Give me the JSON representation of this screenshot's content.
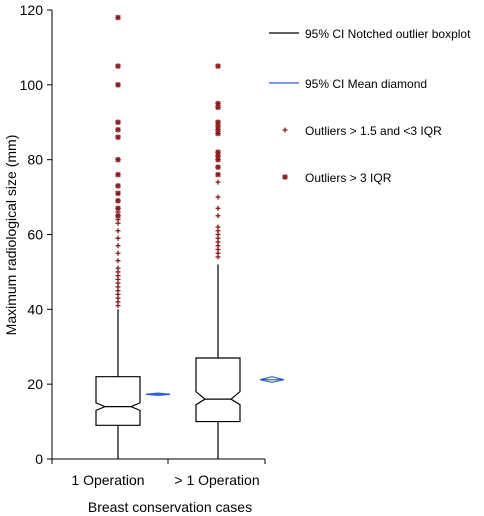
{
  "chart_data": {
    "type": "boxplot",
    "xlabel": "Breast conservation cases",
    "ylabel": "Maximum radiological size (mm)",
    "ylim": [
      0,
      120
    ],
    "yticks": [
      0,
      20,
      40,
      60,
      80,
      100,
      120
    ],
    "categories": [
      "1 Operation",
      "> 1 Operation"
    ],
    "boxes": [
      {
        "category": "1 Operation",
        "whisker_low": 0,
        "q1": 9,
        "median": 14,
        "q3": 22,
        "whisker_high": 40,
        "notch_low": 13,
        "notch_high": 15,
        "mean_ci_low": 17,
        "mean": 17.3,
        "mean_ci_high": 17.6,
        "outliers_mild": [
          41,
          42,
          43,
          44,
          45,
          46,
          47,
          48,
          49,
          50,
          51,
          53,
          55,
          57,
          59,
          61,
          63,
          64,
          66
        ],
        "outliers_extreme": [
          65,
          67,
          69,
          71,
          73,
          76,
          80,
          86,
          88,
          90,
          100,
          105,
          118
        ]
      },
      {
        "category": "> 1 Operation",
        "whisker_low": 0,
        "q1": 10,
        "median": 16,
        "q3": 27,
        "whisker_high": 52,
        "notch_low": 14.5,
        "notch_high": 18,
        "mean_ci_low": 20.5,
        "mean": 21.2,
        "mean_ci_high": 22,
        "outliers_mild": [
          54,
          55,
          56,
          57,
          58,
          59,
          60,
          61,
          62,
          65,
          67,
          70,
          74
        ],
        "outliers_extreme": [
          76,
          78,
          80,
          81,
          82,
          87,
          88,
          89,
          90,
          94,
          95,
          105
        ]
      }
    ],
    "legend": {
      "position": "right",
      "entries": [
        {
          "label": "95% CI Notched outlier boxplot",
          "kind": "line",
          "color": "#000000"
        },
        {
          "label": "95% CI Mean diamond",
          "kind": "line",
          "color": "#2d5fd3"
        },
        {
          "label": "Outliers > 1.5 and <3 IQR",
          "kind": "plus",
          "color": "#8b1a1a"
        },
        {
          "label": "Outliers > 3 IQR",
          "kind": "star",
          "color": "#8b1a1a"
        }
      ]
    },
    "colors": {
      "box": "#000000",
      "mean": "#2d5fd3",
      "outlier": "#8b1a1a"
    }
  }
}
